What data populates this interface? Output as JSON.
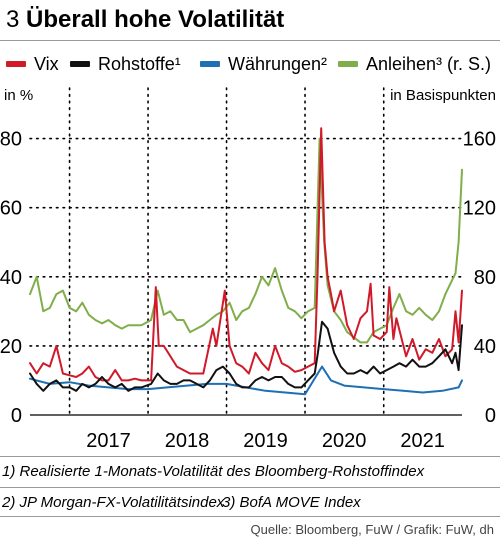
{
  "header": {
    "number": "3",
    "title": "Überall hohe Volatilität"
  },
  "legend": [
    {
      "label": "Vix",
      "color": "#d01a2a"
    },
    {
      "label": "Rohstoffe¹",
      "color": "#111111"
    },
    {
      "label": "Währungen²",
      "color": "#1f6fb5"
    },
    {
      "label": "Anleihen³ (r. S.)",
      "color": "#7fae4a"
    }
  ],
  "footnotes": {
    "f1": "1) Realisierte 1-Monats-Volatilität des Bloomberg-Rohstoffindex",
    "f2": "2) JP Morgan-FX-Volatilitätsindex",
    "f3": "3) BofA MOVE Index",
    "source": "Quelle: Bloomberg, FuW / Grafik: FuW, dh"
  },
  "chart_data": {
    "type": "line",
    "y_left_label": "in %",
    "y_right_label": "in Basispunkten",
    "y_left_range": [
      0,
      90
    ],
    "y_right_range": [
      0,
      180
    ],
    "y_left_ticks": [
      0,
      20,
      40,
      60,
      80
    ],
    "y_right_ticks": [
      0,
      40,
      80,
      120,
      160
    ],
    "x_range": [
      "2016-07-01",
      "2021-12-31"
    ],
    "x_tick_labels": [
      "2017",
      "2018",
      "2019",
      "2020",
      "2021"
    ],
    "gridlines": "dotted vertical at year starts, dotted horizontal at left-axis ticks",
    "series": [
      {
        "name": "Vix",
        "axis": "left",
        "color": "#d01a2a",
        "points": [
          [
            "2016-07-01",
            15
          ],
          [
            "2016-08-01",
            12
          ],
          [
            "2016-09-01",
            15
          ],
          [
            "2016-10-01",
            14
          ],
          [
            "2016-11-01",
            20
          ],
          [
            "2016-12-01",
            12
          ],
          [
            "2017-01-01",
            11.5
          ],
          [
            "2017-02-01",
            11
          ],
          [
            "2017-03-01",
            12
          ],
          [
            "2017-04-01",
            14
          ],
          [
            "2017-05-01",
            11
          ],
          [
            "2017-06-01",
            10
          ],
          [
            "2017-07-01",
            10
          ],
          [
            "2017-08-01",
            13
          ],
          [
            "2017-09-01",
            10
          ],
          [
            "2017-10-01",
            10
          ],
          [
            "2017-11-01",
            10.5
          ],
          [
            "2017-12-01",
            10
          ],
          [
            "2018-01-15",
            10
          ],
          [
            "2018-02-06",
            37
          ],
          [
            "2018-02-20",
            20
          ],
          [
            "2018-03-15",
            20
          ],
          [
            "2018-04-15",
            17
          ],
          [
            "2018-05-15",
            14
          ],
          [
            "2018-06-15",
            13
          ],
          [
            "2018-07-15",
            12
          ],
          [
            "2018-08-15",
            12
          ],
          [
            "2018-09-15",
            12
          ],
          [
            "2018-10-29",
            25
          ],
          [
            "2018-11-15",
            20
          ],
          [
            "2018-12-24",
            36
          ],
          [
            "2019-01-15",
            20
          ],
          [
            "2019-02-15",
            15
          ],
          [
            "2019-03-15",
            14
          ],
          [
            "2019-04-15",
            12
          ],
          [
            "2019-05-15",
            18
          ],
          [
            "2019-06-15",
            15
          ],
          [
            "2019-07-15",
            13
          ],
          [
            "2019-08-15",
            20
          ],
          [
            "2019-09-15",
            15
          ],
          [
            "2019-10-15",
            14
          ],
          [
            "2019-11-15",
            12.5
          ],
          [
            "2019-12-15",
            13
          ],
          [
            "2020-01-15",
            14
          ],
          [
            "2020-02-15",
            15
          ],
          [
            "2020-02-28",
            40
          ],
          [
            "2020-03-16",
            83
          ],
          [
            "2020-04-01",
            50
          ],
          [
            "2020-04-15",
            40
          ],
          [
            "2020-05-01",
            35
          ],
          [
            "2020-05-15",
            30
          ],
          [
            "2020-06-15",
            36
          ],
          [
            "2020-07-15",
            26
          ],
          [
            "2020-08-15",
            22
          ],
          [
            "2020-09-15",
            28
          ],
          [
            "2020-10-15",
            30
          ],
          [
            "2020-11-01",
            38
          ],
          [
            "2020-11-15",
            23
          ],
          [
            "2020-12-15",
            22
          ],
          [
            "2021-01-15",
            24
          ],
          [
            "2021-01-27",
            37
          ],
          [
            "2021-02-15",
            22
          ],
          [
            "2021-03-01",
            28
          ],
          [
            "2021-04-15",
            17
          ],
          [
            "2021-05-15",
            22
          ],
          [
            "2021-06-15",
            16
          ],
          [
            "2021-07-15",
            19
          ],
          [
            "2021-08-15",
            18
          ],
          [
            "2021-09-15",
            22
          ],
          [
            "2021-10-15",
            17
          ],
          [
            "2021-11-15",
            19
          ],
          [
            "2021-12-01",
            30
          ],
          [
            "2021-12-15",
            21
          ],
          [
            "2021-12-31",
            36
          ]
        ]
      },
      {
        "name": "Rohstoffe¹",
        "axis": "left",
        "color": "#111111",
        "points": [
          [
            "2016-07-01",
            12
          ],
          [
            "2016-08-01",
            9
          ],
          [
            "2016-09-01",
            7
          ],
          [
            "2016-10-01",
            9
          ],
          [
            "2016-11-01",
            10
          ],
          [
            "2016-12-01",
            8
          ],
          [
            "2017-01-01",
            8
          ],
          [
            "2017-02-01",
            7
          ],
          [
            "2017-03-01",
            9
          ],
          [
            "2017-04-01",
            8
          ],
          [
            "2017-05-01",
            9
          ],
          [
            "2017-06-01",
            11
          ],
          [
            "2017-07-01",
            9
          ],
          [
            "2017-08-01",
            8
          ],
          [
            "2017-09-01",
            9
          ],
          [
            "2017-10-01",
            7
          ],
          [
            "2017-11-01",
            8
          ],
          [
            "2017-12-01",
            8
          ],
          [
            "2018-01-15",
            9
          ],
          [
            "2018-02-15",
            12
          ],
          [
            "2018-03-15",
            10
          ],
          [
            "2018-04-15",
            9
          ],
          [
            "2018-05-15",
            9
          ],
          [
            "2018-06-15",
            10
          ],
          [
            "2018-07-15",
            10
          ],
          [
            "2018-08-15",
            9
          ],
          [
            "2018-09-15",
            8
          ],
          [
            "2018-10-15",
            10
          ],
          [
            "2018-11-15",
            13
          ],
          [
            "2018-12-15",
            14
          ],
          [
            "2019-01-15",
            12
          ],
          [
            "2019-02-15",
            9
          ],
          [
            "2019-03-15",
            8
          ],
          [
            "2019-04-15",
            8
          ],
          [
            "2019-05-15",
            10
          ],
          [
            "2019-06-15",
            11
          ],
          [
            "2019-07-15",
            10
          ],
          [
            "2019-08-15",
            11
          ],
          [
            "2019-09-15",
            11
          ],
          [
            "2019-10-15",
            9
          ],
          [
            "2019-11-15",
            8
          ],
          [
            "2019-12-15",
            8
          ],
          [
            "2020-01-15",
            10
          ],
          [
            "2020-02-15",
            12
          ],
          [
            "2020-03-01",
            18
          ],
          [
            "2020-03-20",
            27
          ],
          [
            "2020-04-15",
            25
          ],
          [
            "2020-05-15",
            18
          ],
          [
            "2020-06-15",
            14
          ],
          [
            "2020-07-15",
            12
          ],
          [
            "2020-08-15",
            12
          ],
          [
            "2020-09-15",
            13
          ],
          [
            "2020-10-15",
            12
          ],
          [
            "2020-11-15",
            14
          ],
          [
            "2020-12-15",
            12
          ],
          [
            "2021-01-15",
            13
          ],
          [
            "2021-02-15",
            14
          ],
          [
            "2021-03-15",
            15
          ],
          [
            "2021-04-15",
            14
          ],
          [
            "2021-05-15",
            16
          ],
          [
            "2021-06-15",
            14
          ],
          [
            "2021-07-15",
            14
          ],
          [
            "2021-08-15",
            15
          ],
          [
            "2021-09-15",
            17
          ],
          [
            "2021-10-15",
            19
          ],
          [
            "2021-11-15",
            15
          ],
          [
            "2021-12-01",
            18
          ],
          [
            "2021-12-15",
            13
          ],
          [
            "2021-12-31",
            26
          ]
        ]
      },
      {
        "name": "Währungen²",
        "axis": "left",
        "color": "#1f6fb5",
        "points": [
          [
            "2016-07-01",
            10.5
          ],
          [
            "2016-10-01",
            9
          ],
          [
            "2017-01-01",
            9.5
          ],
          [
            "2017-04-01",
            8.5
          ],
          [
            "2017-07-01",
            8
          ],
          [
            "2017-10-01",
            7.5
          ],
          [
            "2018-01-01",
            7.5
          ],
          [
            "2018-04-01",
            8
          ],
          [
            "2018-07-01",
            8.5
          ],
          [
            "2018-10-01",
            9
          ],
          [
            "2019-01-01",
            9
          ],
          [
            "2019-04-01",
            8
          ],
          [
            "2019-07-01",
            7
          ],
          [
            "2019-10-01",
            6.5
          ],
          [
            "2020-01-01",
            6
          ],
          [
            "2020-03-20",
            14
          ],
          [
            "2020-05-01",
            10
          ],
          [
            "2020-07-01",
            8.5
          ],
          [
            "2020-10-01",
            8
          ],
          [
            "2021-01-01",
            7.5
          ],
          [
            "2021-04-01",
            7
          ],
          [
            "2021-07-01",
            6.5
          ],
          [
            "2021-10-01",
            7
          ],
          [
            "2021-12-15",
            8
          ],
          [
            "2021-12-31",
            10
          ]
        ]
      },
      {
        "name": "Anleihen³ (r. S.)",
        "axis": "right",
        "color": "#7fae4a",
        "points": [
          [
            "2016-07-01",
            70
          ],
          [
            "2016-08-01",
            80
          ],
          [
            "2016-09-01",
            60
          ],
          [
            "2016-10-01",
            62
          ],
          [
            "2016-11-01",
            70
          ],
          [
            "2016-12-01",
            72
          ],
          [
            "2017-01-01",
            62
          ],
          [
            "2017-02-01",
            60
          ],
          [
            "2017-03-01",
            65
          ],
          [
            "2017-04-01",
            58
          ],
          [
            "2017-05-01",
            55
          ],
          [
            "2017-06-01",
            53
          ],
          [
            "2017-07-01",
            55
          ],
          [
            "2017-08-01",
            52
          ],
          [
            "2017-09-01",
            50
          ],
          [
            "2017-10-01",
            52
          ],
          [
            "2017-11-01",
            52
          ],
          [
            "2017-12-01",
            52
          ],
          [
            "2018-01-15",
            55
          ],
          [
            "2018-02-15",
            72
          ],
          [
            "2018-03-15",
            58
          ],
          [
            "2018-04-15",
            60
          ],
          [
            "2018-05-15",
            55
          ],
          [
            "2018-06-15",
            55
          ],
          [
            "2018-07-15",
            48
          ],
          [
            "2018-08-15",
            50
          ],
          [
            "2018-09-15",
            52
          ],
          [
            "2018-10-15",
            55
          ],
          [
            "2018-11-15",
            58
          ],
          [
            "2018-12-15",
            60
          ],
          [
            "2019-01-15",
            65
          ],
          [
            "2019-02-15",
            55
          ],
          [
            "2019-03-15",
            60
          ],
          [
            "2019-04-15",
            62
          ],
          [
            "2019-05-15",
            70
          ],
          [
            "2019-06-15",
            80
          ],
          [
            "2019-07-15",
            75
          ],
          [
            "2019-08-15",
            85
          ],
          [
            "2019-09-15",
            72
          ],
          [
            "2019-10-15",
            62
          ],
          [
            "2019-11-15",
            60
          ],
          [
            "2019-12-15",
            56
          ],
          [
            "2020-01-15",
            60
          ],
          [
            "2020-02-15",
            62
          ],
          [
            "2020-03-09",
            160
          ],
          [
            "2020-03-30",
            100
          ],
          [
            "2020-04-15",
            75
          ],
          [
            "2020-05-15",
            60
          ],
          [
            "2020-06-15",
            55
          ],
          [
            "2020-07-15",
            48
          ],
          [
            "2020-08-15",
            45
          ],
          [
            "2020-09-15",
            42
          ],
          [
            "2020-10-15",
            42
          ],
          [
            "2020-11-15",
            48
          ],
          [
            "2020-12-15",
            50
          ],
          [
            "2021-01-15",
            52
          ],
          [
            "2021-02-15",
            62
          ],
          [
            "2021-03-15",
            70
          ],
          [
            "2021-04-15",
            60
          ],
          [
            "2021-05-15",
            58
          ],
          [
            "2021-06-15",
            62
          ],
          [
            "2021-07-15",
            58
          ],
          [
            "2021-08-15",
            55
          ],
          [
            "2021-09-15",
            60
          ],
          [
            "2021-10-15",
            70
          ],
          [
            "2021-11-15",
            78
          ],
          [
            "2021-12-01",
            82
          ],
          [
            "2021-12-15",
            100
          ],
          [
            "2021-12-31",
            142
          ]
        ]
      }
    ]
  }
}
